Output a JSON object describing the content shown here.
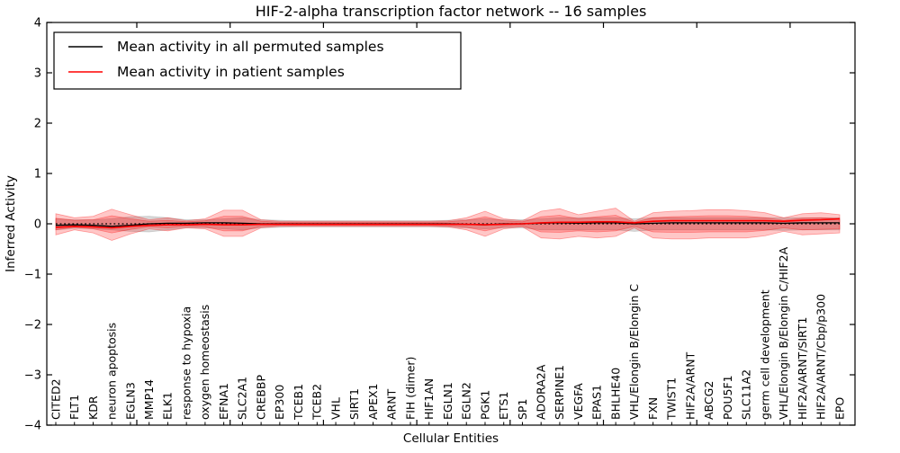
{
  "title": "HIF-2-alpha transcription factor network -- 16 samples",
  "legend": {
    "items": [
      {
        "label": "Mean activity in all permuted samples",
        "color": "#000000"
      },
      {
        "label": "Mean activity in patient samples",
        "color": "#ff0000"
      }
    ]
  },
  "axes": {
    "xlabel": "Cellular Entities",
    "ylabel": "Inferred Activity",
    "yticks": [
      4,
      3,
      2,
      1,
      0,
      -1,
      -2,
      -3,
      -4
    ],
    "ytick_labels": [
      "4",
      "3",
      "2",
      "1",
      "0",
      "−1",
      "−2",
      "−3",
      "−4"
    ]
  },
  "chart_data": {
    "type": "line",
    "title": "HIF-2-alpha transcription factor network -- 16 samples",
    "xlabel": "Cellular Entities",
    "ylabel": "Inferred Activity",
    "ylim": [
      -4,
      4
    ],
    "grid": false,
    "legend_position": "upper left",
    "zero_reference_line": 0,
    "categories": [
      "CITED2",
      "FLT1",
      "KDR",
      "neuron apoptosis",
      "EGLN3",
      "MMP14",
      "ELK1",
      "response to hypoxia",
      "oxygen homeostasis",
      "EFNA1",
      "SLC2A1",
      "CREBBP",
      "EP300",
      "TCEB1",
      "TCEB2",
      "VHL",
      "SIRT1",
      "APEX1",
      "ARNT",
      "FIH (dimer)",
      "HIF1AN",
      "EGLN1",
      "EGLN2",
      "PGK1",
      "ETS1",
      "SP1",
      "ADORA2A",
      "SERPINE1",
      "VEGFA",
      "EPAS1",
      "BHLHE40",
      "VHL/Elongin B/Elongin C",
      "FXN",
      "TWIST1",
      "HIF2A/ARNT",
      "ABCG2",
      "POU5F1",
      "SLC11A2",
      "germ cell development",
      "VHL/Elongin B/Elongin C/HIF2A",
      "HIF2A/ARNT/SIRT1",
      "HIF2A/ARNT/Cbp/p300",
      "EPO"
    ],
    "series": [
      {
        "name": "Mean activity in all permuted samples",
        "color": "#000000",
        "values": [
          -0.03,
          -0.02,
          -0.03,
          -0.05,
          -0.03,
          0.0,
          0.01,
          0.01,
          0.02,
          0.02,
          0.01,
          0.0,
          0.0,
          0.0,
          0.0,
          0.0,
          0.0,
          0.0,
          0.0,
          0.0,
          0.0,
          0.0,
          -0.01,
          -0.02,
          0.0,
          0.0,
          0.01,
          0.02,
          0.01,
          0.02,
          0.02,
          0.0,
          0.01,
          0.02,
          0.02,
          0.02,
          0.02,
          0.02,
          0.02,
          0.01,
          0.02,
          0.02,
          0.02
        ]
      },
      {
        "name": "Mean activity in patient samples",
        "color": "#ff0000",
        "values": [
          -0.07,
          -0.05,
          -0.06,
          -0.08,
          -0.05,
          -0.03,
          -0.02,
          -0.02,
          -0.01,
          -0.02,
          -0.02,
          -0.01,
          -0.01,
          -0.01,
          -0.01,
          -0.01,
          -0.01,
          -0.01,
          -0.01,
          -0.01,
          -0.01,
          -0.01,
          -0.01,
          -0.02,
          -0.01,
          0.0,
          0.02,
          0.03,
          0.03,
          0.04,
          0.04,
          0.02,
          0.05,
          0.06,
          0.06,
          0.06,
          0.06,
          0.06,
          0.06,
          0.05,
          0.07,
          0.08,
          0.1
        ]
      }
    ],
    "bands": [
      {
        "name": "permuted-range",
        "color": "#aaaaaa",
        "alpha": 0.45,
        "upper": [
          0.1,
          0.08,
          0.08,
          0.1,
          0.14,
          0.15,
          0.12,
          0.08,
          0.08,
          0.1,
          0.12,
          0.08,
          0.07,
          0.06,
          0.06,
          0.06,
          0.06,
          0.06,
          0.06,
          0.06,
          0.06,
          0.07,
          0.08,
          0.1,
          0.08,
          0.08,
          0.1,
          0.12,
          0.12,
          0.12,
          0.12,
          0.1,
          0.12,
          0.12,
          0.12,
          0.12,
          0.12,
          0.12,
          0.12,
          0.12,
          0.12,
          0.12,
          0.12
        ],
        "lower": [
          -0.12,
          -0.09,
          -0.1,
          -0.12,
          -0.15,
          -0.16,
          -0.12,
          -0.08,
          -0.08,
          -0.1,
          -0.12,
          -0.08,
          -0.07,
          -0.06,
          -0.06,
          -0.06,
          -0.06,
          -0.06,
          -0.06,
          -0.06,
          -0.06,
          -0.07,
          -0.08,
          -0.1,
          -0.08,
          -0.08,
          -0.12,
          -0.12,
          -0.12,
          -0.12,
          -0.12,
          -0.15,
          -0.12,
          -0.12,
          -0.12,
          -0.12,
          -0.12,
          -0.12,
          -0.12,
          -0.13,
          -0.12,
          -0.12,
          -0.12
        ]
      },
      {
        "name": "patient-range-outer",
        "color": "#ff0000",
        "alpha": 0.22,
        "upper": [
          0.2,
          0.12,
          0.15,
          0.29,
          0.18,
          0.08,
          0.12,
          0.06,
          0.1,
          0.27,
          0.27,
          0.08,
          0.05,
          0.05,
          0.05,
          0.05,
          0.05,
          0.05,
          0.05,
          0.05,
          0.05,
          0.06,
          0.12,
          0.25,
          0.1,
          0.06,
          0.25,
          0.3,
          0.18,
          0.25,
          0.31,
          0.05,
          0.22,
          0.25,
          0.26,
          0.28,
          0.28,
          0.26,
          0.22,
          0.12,
          0.2,
          0.22,
          0.18
        ],
        "lower": [
          -0.22,
          -0.12,
          -0.18,
          -0.33,
          -0.2,
          -0.1,
          -0.14,
          -0.08,
          -0.1,
          -0.25,
          -0.25,
          -0.08,
          -0.05,
          -0.05,
          -0.05,
          -0.05,
          -0.05,
          -0.05,
          -0.05,
          -0.05,
          -0.05,
          -0.06,
          -0.12,
          -0.25,
          -0.1,
          -0.06,
          -0.28,
          -0.3,
          -0.25,
          -0.28,
          -0.25,
          -0.08,
          -0.28,
          -0.3,
          -0.3,
          -0.28,
          -0.28,
          -0.28,
          -0.24,
          -0.15,
          -0.22,
          -0.2,
          -0.18
        ]
      },
      {
        "name": "patient-range-inner",
        "color": "#ff0000",
        "alpha": 0.22,
        "upper": [
          0.11,
          0.07,
          0.08,
          0.16,
          0.1,
          0.05,
          0.07,
          0.04,
          0.06,
          0.15,
          0.15,
          0.05,
          0.03,
          0.03,
          0.03,
          0.03,
          0.03,
          0.03,
          0.03,
          0.03,
          0.03,
          0.04,
          0.07,
          0.14,
          0.06,
          0.04,
          0.14,
          0.17,
          0.1,
          0.14,
          0.17,
          0.03,
          0.12,
          0.14,
          0.15,
          0.16,
          0.16,
          0.15,
          0.12,
          0.07,
          0.11,
          0.12,
          0.1
        ],
        "lower": [
          -0.12,
          -0.07,
          -0.1,
          -0.18,
          -0.11,
          -0.06,
          -0.08,
          -0.05,
          -0.06,
          -0.14,
          -0.14,
          -0.05,
          -0.03,
          -0.03,
          -0.03,
          -0.03,
          -0.03,
          -0.03,
          -0.03,
          -0.03,
          -0.03,
          -0.04,
          -0.07,
          -0.14,
          -0.06,
          -0.04,
          -0.16,
          -0.17,
          -0.14,
          -0.16,
          -0.14,
          -0.05,
          -0.16,
          -0.17,
          -0.17,
          -0.16,
          -0.16,
          -0.16,
          -0.13,
          -0.08,
          -0.12,
          -0.11,
          -0.1
        ]
      }
    ]
  }
}
